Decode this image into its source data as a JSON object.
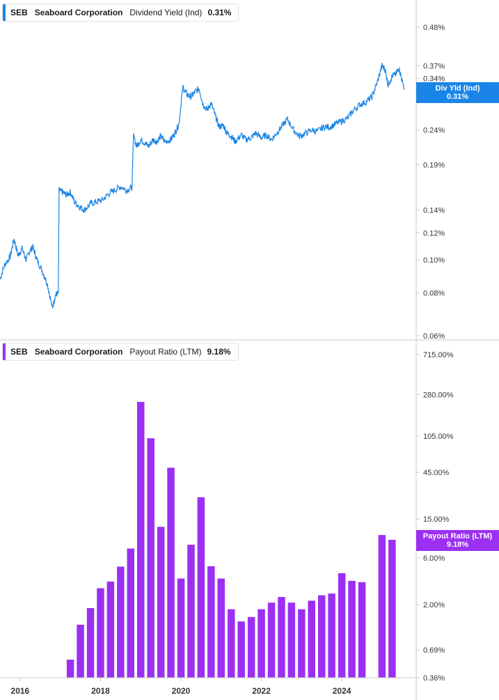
{
  "panels": [
    {
      "ticker": "SEB",
      "name": "Seaboard Corporation",
      "metric": "Dividend Yield (Ind)",
      "value": "0.31%",
      "flag_label": "Div Yld (Ind)",
      "flag_value": "0.31%",
      "color": "#1a85e6"
    },
    {
      "ticker": "SEB",
      "name": "Seaboard Corporation",
      "metric": "Payout Ratio (LTM)",
      "value": "9.18%",
      "flag_label": "Payout Ratio (LTM)",
      "flag_value": "9.18%",
      "color": "#9b30f2"
    }
  ],
  "chart_data": [
    {
      "type": "line",
      "title": "Dividend Yield (Ind)",
      "series": [
        {
          "name": "Dividend Yield (Ind)",
          "color": "#1a85e6"
        }
      ],
      "yscale": "log",
      "ylim": [
        0.06,
        0.55
      ],
      "yticks": [
        0.06,
        0.08,
        0.1,
        0.12,
        0.14,
        0.19,
        0.24,
        0.34,
        0.37,
        0.48
      ],
      "ytick_labels": [
        "0.06%",
        "0.08%",
        "0.10%",
        "0.12%",
        "0.14%",
        "0.19%",
        "0.24%",
        "0.34%",
        "0.37%",
        "0.48%"
      ],
      "points": [
        [
          2015.5,
          0.088
        ],
        [
          2015.62,
          0.097
        ],
        [
          2015.75,
          0.102
        ],
        [
          2015.85,
          0.115
        ],
        [
          2015.95,
          0.103
        ],
        [
          2016.05,
          0.108
        ],
        [
          2016.15,
          0.1
        ],
        [
          2016.25,
          0.107
        ],
        [
          2016.32,
          0.109
        ],
        [
          2016.42,
          0.1
        ],
        [
          2016.55,
          0.093
        ],
        [
          2016.68,
          0.085
        ],
        [
          2016.8,
          0.072
        ],
        [
          2016.88,
          0.079
        ],
        [
          2016.95,
          0.08
        ],
        [
          2016.97,
          0.16
        ],
        [
          2017.05,
          0.158
        ],
        [
          2017.15,
          0.155
        ],
        [
          2017.25,
          0.158
        ],
        [
          2017.35,
          0.148
        ],
        [
          2017.48,
          0.143
        ],
        [
          2017.6,
          0.14
        ],
        [
          2017.75,
          0.146
        ],
        [
          2017.9,
          0.148
        ],
        [
          2018.05,
          0.15
        ],
        [
          2018.2,
          0.156
        ],
        [
          2018.35,
          0.16
        ],
        [
          2018.5,
          0.164
        ],
        [
          2018.65,
          0.16
        ],
        [
          2018.78,
          0.163
        ],
        [
          2018.82,
          0.23
        ],
        [
          2018.9,
          0.215
        ],
        [
          2019.0,
          0.225
        ],
        [
          2019.1,
          0.22
        ],
        [
          2019.2,
          0.215
        ],
        [
          2019.3,
          0.225
        ],
        [
          2019.4,
          0.222
        ],
        [
          2019.5,
          0.23
        ],
        [
          2019.6,
          0.222
        ],
        [
          2019.75,
          0.225
        ],
        [
          2019.85,
          0.235
        ],
        [
          2019.95,
          0.25
        ],
        [
          2020.05,
          0.32
        ],
        [
          2020.15,
          0.305
        ],
        [
          2020.25,
          0.3
        ],
        [
          2020.35,
          0.31
        ],
        [
          2020.45,
          0.318
        ],
        [
          2020.55,
          0.285
        ],
        [
          2020.65,
          0.275
        ],
        [
          2020.75,
          0.287
        ],
        [
          2020.85,
          0.265
        ],
        [
          2020.95,
          0.245
        ],
        [
          2021.05,
          0.248
        ],
        [
          2021.15,
          0.235
        ],
        [
          2021.25,
          0.23
        ],
        [
          2021.35,
          0.222
        ],
        [
          2021.5,
          0.232
        ],
        [
          2021.62,
          0.225
        ],
        [
          2021.75,
          0.228
        ],
        [
          2021.85,
          0.235
        ],
        [
          2022.0,
          0.228
        ],
        [
          2022.12,
          0.232
        ],
        [
          2022.25,
          0.225
        ],
        [
          2022.38,
          0.235
        ],
        [
          2022.5,
          0.245
        ],
        [
          2022.65,
          0.258
        ],
        [
          2022.8,
          0.24
        ],
        [
          2022.95,
          0.23
        ],
        [
          2023.1,
          0.235
        ],
        [
          2023.25,
          0.24
        ],
        [
          2023.4,
          0.238
        ],
        [
          2023.55,
          0.245
        ],
        [
          2023.7,
          0.245
        ],
        [
          2023.85,
          0.25
        ],
        [
          2024.0,
          0.255
        ],
        [
          2024.15,
          0.26
        ],
        [
          2024.3,
          0.275
        ],
        [
          2024.45,
          0.285
        ],
        [
          2024.6,
          0.29
        ],
        [
          2024.75,
          0.3
        ],
        [
          2024.88,
          0.33
        ],
        [
          2025.0,
          0.37
        ],
        [
          2025.08,
          0.36
        ],
        [
          2025.15,
          0.325
        ],
        [
          2025.25,
          0.345
        ],
        [
          2025.35,
          0.35
        ],
        [
          2025.42,
          0.365
        ],
        [
          2025.5,
          0.335
        ],
        [
          2025.55,
          0.315
        ]
      ]
    },
    {
      "type": "bar",
      "title": "Payout Ratio (LTM)",
      "series": [
        {
          "name": "Payout Ratio (LTM)",
          "color": "#9b30f2"
        }
      ],
      "yscale": "log",
      "ylim": [
        0.36,
        715
      ],
      "yticks": [
        0.36,
        0.69,
        2.0,
        6.0,
        15.0,
        45.0,
        105.0,
        280.0,
        715.0
      ],
      "ytick_labels": [
        "0.36%",
        "0.69%",
        "2.00%",
        "6.00%",
        "15.00%",
        "45.00%",
        "105.00%",
        "280.00%",
        "715.00%"
      ],
      "x": [
        2017.25,
        2017.5,
        2017.75,
        2018.0,
        2018.25,
        2018.5,
        2018.75,
        2019.0,
        2019.25,
        2019.5,
        2019.75,
        2020.0,
        2020.25,
        2020.5,
        2020.75,
        2021.0,
        2021.25,
        2021.5,
        2021.75,
        2022.0,
        2022.25,
        2022.5,
        2022.75,
        2023.0,
        2023.25,
        2023.5,
        2023.75,
        2024.0,
        2024.25,
        2024.5,
        2024.75,
        2025.0,
        2025.25
      ],
      "values": [
        0.55,
        1.25,
        1.85,
        2.95,
        3.45,
        4.9,
        7.5,
        235,
        100,
        12.5,
        50,
        3.7,
        8.2,
        25,
        4.95,
        3.7,
        1.8,
        1.35,
        1.5,
        1.8,
        2.1,
        2.4,
        2.1,
        1.8,
        2.2,
        2.5,
        2.6,
        4.2,
        3.5,
        3.4,
        null,
        10.3,
        9.2
      ]
    }
  ],
  "x_axis": {
    "ticks": [
      2016,
      2018,
      2020,
      2022,
      2024
    ],
    "labels": [
      "2016",
      "2018",
      "2020",
      "2022",
      "2024"
    ],
    "range": [
      2015.5,
      2025.85
    ]
  }
}
